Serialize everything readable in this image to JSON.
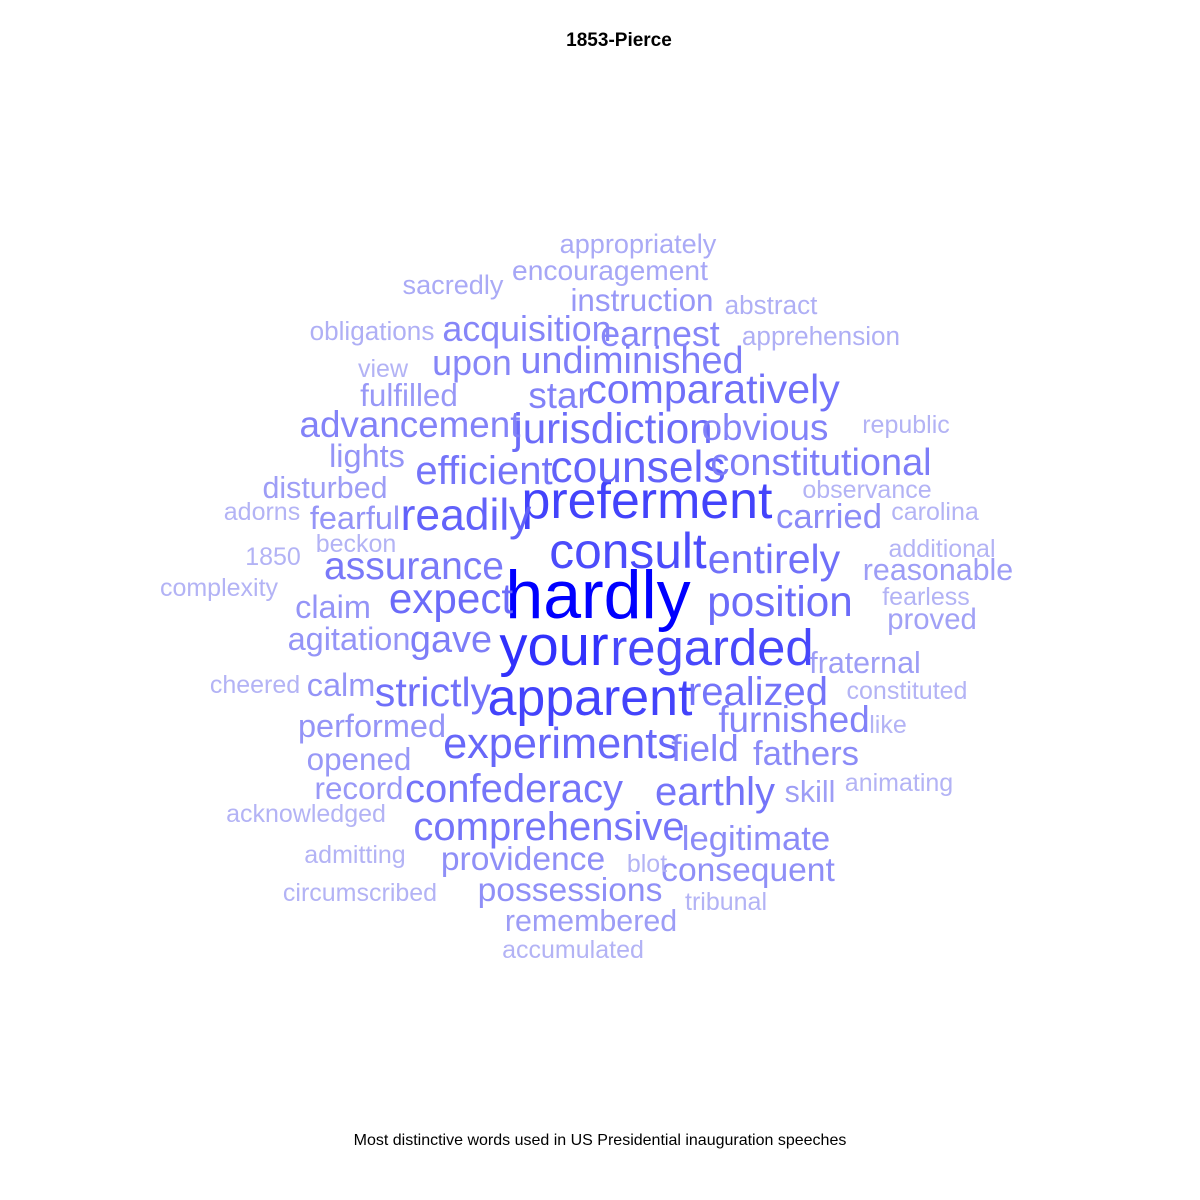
{
  "chart_data": {
    "type": "wordcloud",
    "title": "1853-Pierce",
    "caption": "Most distinctive words used in US Presidential inauguration speeches",
    "color_scale": {
      "low": "#b3b3f5",
      "high": "#0000ff"
    },
    "words": [
      {
        "text": "hardly",
        "weight": 1.0
      },
      {
        "text": "your",
        "weight": 0.78
      },
      {
        "text": "preferment",
        "weight": 0.7
      },
      {
        "text": "apparent",
        "weight": 0.7
      },
      {
        "text": "regarded",
        "weight": 0.68
      },
      {
        "text": "consult",
        "weight": 0.66
      },
      {
        "text": "counsels",
        "weight": 0.56
      },
      {
        "text": "readily",
        "weight": 0.56
      },
      {
        "text": "experiments",
        "weight": 0.54
      },
      {
        "text": "jurisdiction",
        "weight": 0.52
      },
      {
        "text": "expect",
        "weight": 0.52
      },
      {
        "text": "position",
        "weight": 0.52
      },
      {
        "text": "entirely",
        "weight": 0.5
      },
      {
        "text": "comparatively",
        "weight": 0.5
      },
      {
        "text": "strictly",
        "weight": 0.5
      },
      {
        "text": "realized",
        "weight": 0.48
      },
      {
        "text": "efficient",
        "weight": 0.48
      },
      {
        "text": "confederacy",
        "weight": 0.48
      },
      {
        "text": "comprehensive",
        "weight": 0.48
      },
      {
        "text": "earthly",
        "weight": 0.48
      },
      {
        "text": "assurance",
        "weight": 0.46
      },
      {
        "text": "constitutional",
        "weight": 0.44
      },
      {
        "text": "undiminished",
        "weight": 0.44
      },
      {
        "text": "gave",
        "weight": 0.44
      },
      {
        "text": "advancement",
        "weight": 0.42
      },
      {
        "text": "furnished",
        "weight": 0.42
      },
      {
        "text": "obvious",
        "weight": 0.42
      },
      {
        "text": "star",
        "weight": 0.42
      },
      {
        "text": "field",
        "weight": 0.42
      },
      {
        "text": "earnest",
        "weight": 0.4
      },
      {
        "text": "acquisition",
        "weight": 0.4
      },
      {
        "text": "upon",
        "weight": 0.4
      },
      {
        "text": "legitimate",
        "weight": 0.38
      },
      {
        "text": "fathers",
        "weight": 0.38
      },
      {
        "text": "carried",
        "weight": 0.38
      },
      {
        "text": "providence",
        "weight": 0.36
      },
      {
        "text": "possessions",
        "weight": 0.36
      },
      {
        "text": "consequent",
        "weight": 0.36
      },
      {
        "text": "performed",
        "weight": 0.34
      },
      {
        "text": "agitation",
        "weight": 0.34
      },
      {
        "text": "lights",
        "weight": 0.34
      },
      {
        "text": "fearful",
        "weight": 0.34
      },
      {
        "text": "claim",
        "weight": 0.34
      },
      {
        "text": "calm",
        "weight": 0.34
      },
      {
        "text": "opened",
        "weight": 0.32
      },
      {
        "text": "record",
        "weight": 0.32
      },
      {
        "text": "instruction",
        "weight": 0.32
      },
      {
        "text": "fulfilled",
        "weight": 0.32
      },
      {
        "text": "remembered",
        "weight": 0.3
      },
      {
        "text": "fraternal",
        "weight": 0.3
      },
      {
        "text": "skill",
        "weight": 0.3
      },
      {
        "text": "disturbed",
        "weight": 0.3
      },
      {
        "text": "reasonable",
        "weight": 0.3
      },
      {
        "text": "proved",
        "weight": 0.28
      },
      {
        "text": "encouragement",
        "weight": 0.26
      },
      {
        "text": "appropriately",
        "weight": 0.24
      },
      {
        "text": "sacredly",
        "weight": 0.24
      },
      {
        "text": "abstract",
        "weight": 0.22
      },
      {
        "text": "obligations",
        "weight": 0.22
      },
      {
        "text": "apprehension",
        "weight": 0.22
      },
      {
        "text": "view",
        "weight": 0.2
      },
      {
        "text": "republic",
        "weight": 0.2
      },
      {
        "text": "observance",
        "weight": 0.2
      },
      {
        "text": "adorns",
        "weight": 0.2
      },
      {
        "text": "carolina",
        "weight": 0.2
      },
      {
        "text": "beckon",
        "weight": 0.2
      },
      {
        "text": "1850",
        "weight": 0.2
      },
      {
        "text": "additional",
        "weight": 0.2
      },
      {
        "text": "complexity",
        "weight": 0.2
      },
      {
        "text": "fearless",
        "weight": 0.2
      },
      {
        "text": "cheered",
        "weight": 0.2
      },
      {
        "text": "constituted",
        "weight": 0.2
      },
      {
        "text": "like",
        "weight": 0.2
      },
      {
        "text": "animating",
        "weight": 0.2
      },
      {
        "text": "acknowledged",
        "weight": 0.2
      },
      {
        "text": "admitting",
        "weight": 0.2
      },
      {
        "text": "blot",
        "weight": 0.2
      },
      {
        "text": "circumscribed",
        "weight": 0.2
      },
      {
        "text": "tribunal",
        "weight": 0.2
      },
      {
        "text": "accumulated",
        "weight": 0.2
      }
    ]
  }
}
